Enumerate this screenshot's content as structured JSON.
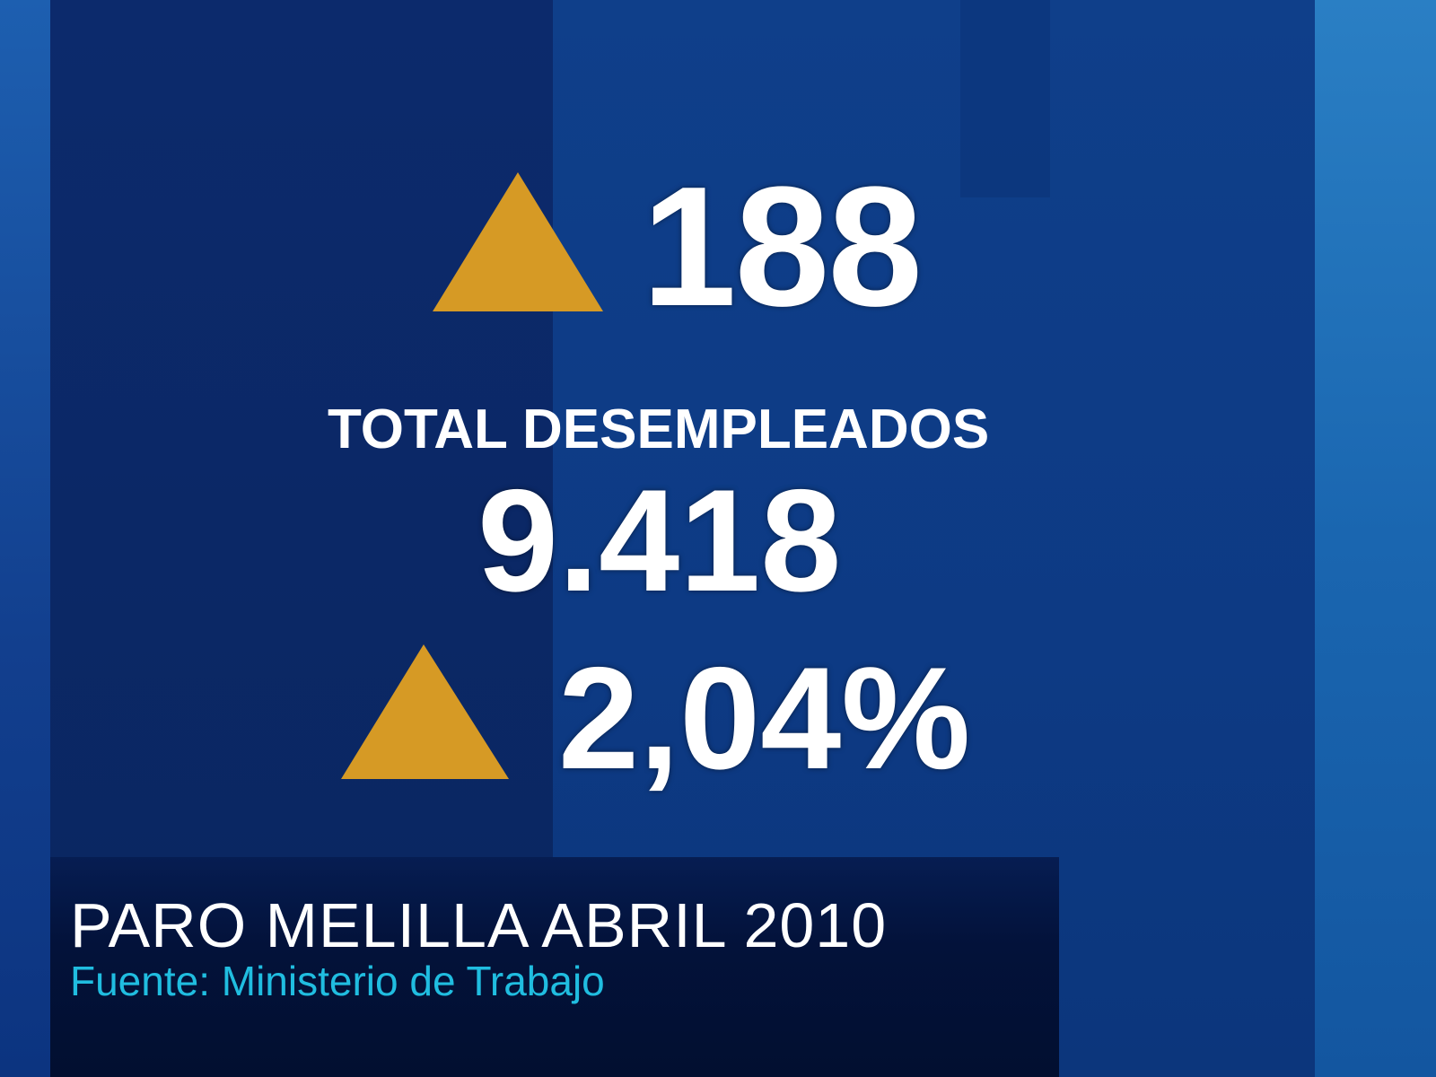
{
  "colors": {
    "triangle": "#d69a25",
    "source_text": "#20bde0",
    "background": "#0b2f78"
  },
  "stats": {
    "monthly_change": {
      "icon": "triangle-up-icon",
      "value": "188"
    },
    "total_label": "TOTAL DESEMPLEADOS",
    "total_value": "9.418",
    "percent_change": {
      "icon": "triangle-up-icon",
      "value": "2,04%"
    }
  },
  "footer": {
    "title": "PARO MELILLA ABRIL 2010",
    "source": "Fuente: Ministerio de Trabajo"
  }
}
